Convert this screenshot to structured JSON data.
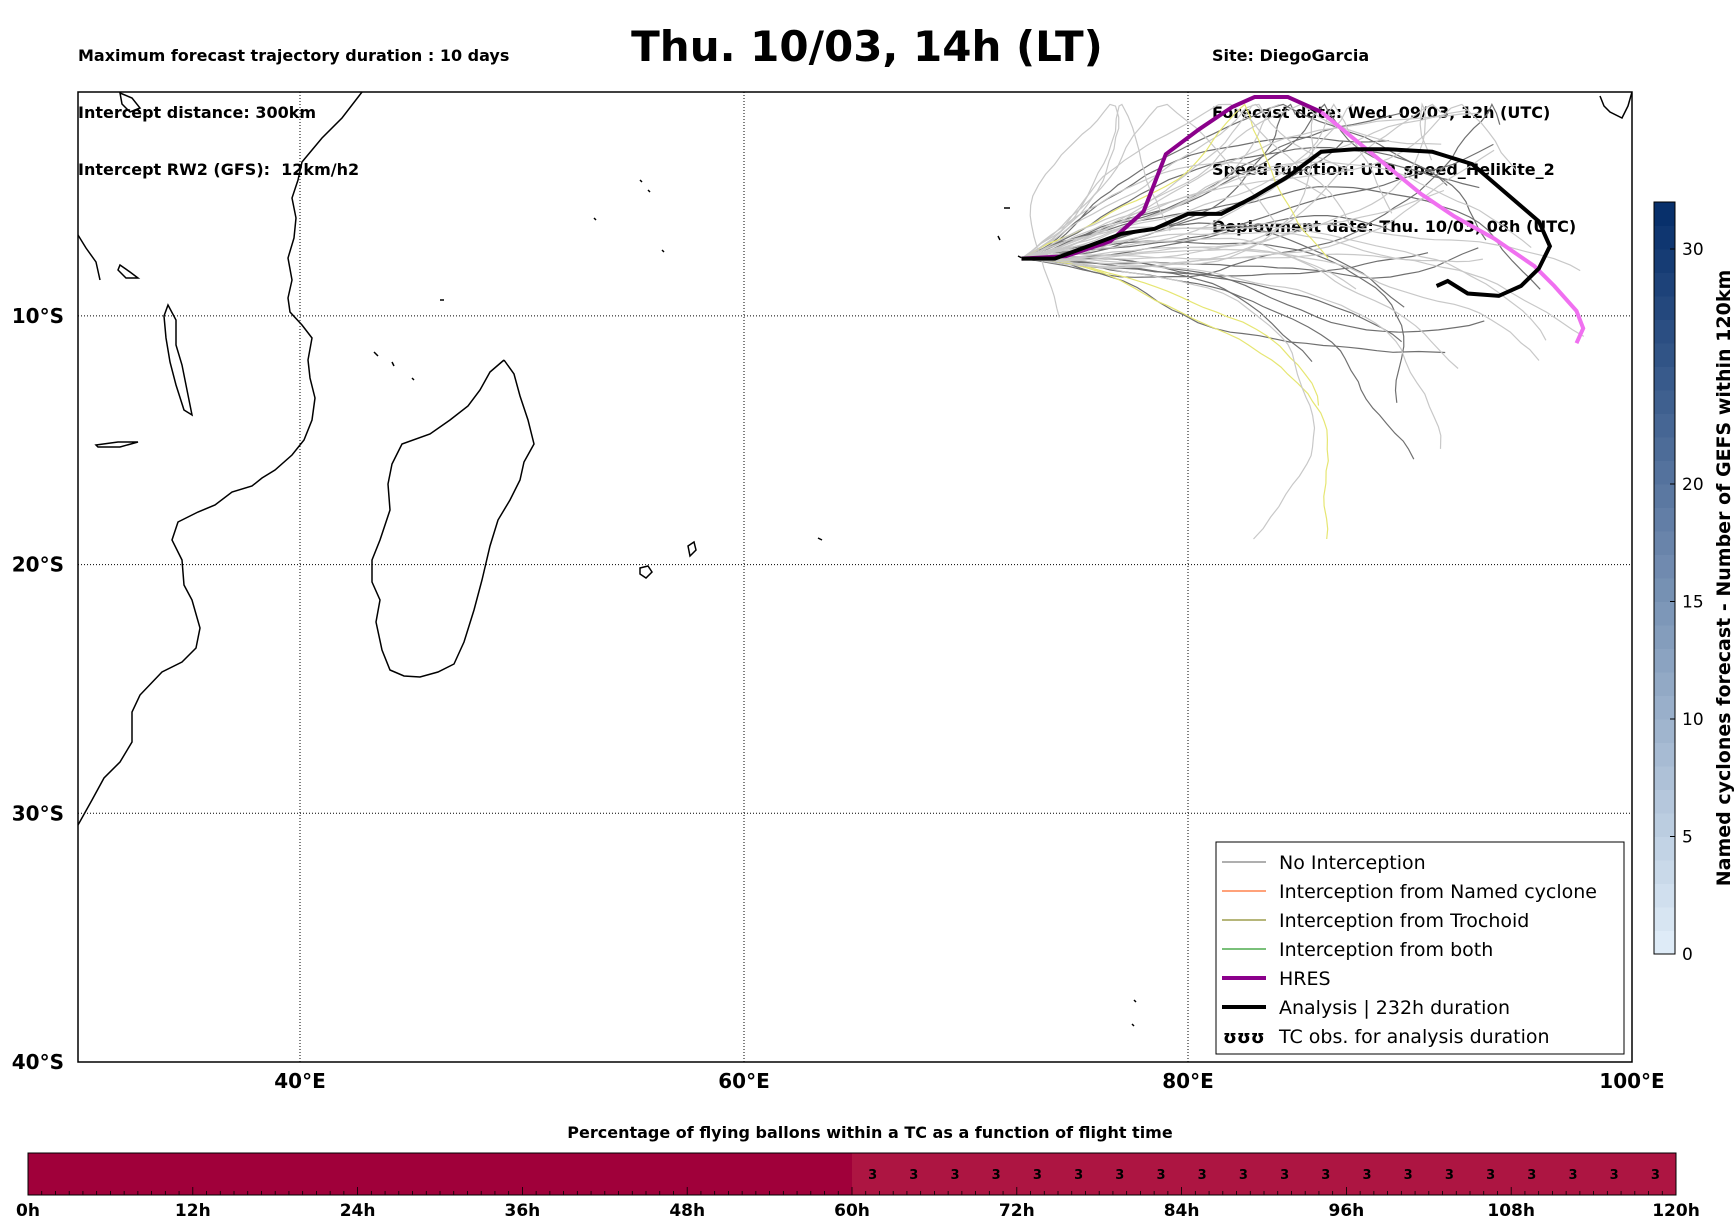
{
  "header": {
    "left_lines": [
      "Maximum forecast trajectory duration : 10 days",
      "Intercept distance: 300km",
      "Intercept RW2 (GFS):  12km/h2"
    ],
    "title": "Thu. 10/03, 14h (LT)",
    "right_lines": [
      "Site: DiegoGarcia",
      "Forecast date: Wed. 09/03, 12h (UTC)",
      "Speed function: U10_speed_Helikite_2",
      "Deployment date: Thu. 10/03, 08h (UTC)"
    ]
  },
  "chart_data": [
    {
      "type": "map",
      "projection": "equirectangular",
      "lon_range": [
        30,
        100
      ],
      "lat_range": [
        -40,
        -1
      ],
      "x_ticks": [
        "40°E",
        "60°E",
        "80°E",
        "100°E"
      ],
      "y_ticks": [
        "10°S",
        "20°S",
        "30°S",
        "40°S"
      ],
      "grid": true,
      "legend_position": "bottom-right",
      "legend": [
        {
          "label": "No Interception",
          "color": "#7f7f7f",
          "style": "thin"
        },
        {
          "label": "Interception from Named cyclone",
          "color": "#ff6a2a",
          "style": "thin"
        },
        {
          "label": "Interception from Trochoid",
          "color": "#8b8b2a",
          "style": "thin"
        },
        {
          "label": "Interception from both",
          "color": "#2a9a2a",
          "style": "thin"
        },
        {
          "label": "HRES",
          "color": "#8b008b",
          "style": "thick"
        },
        {
          "label": "Analysis | 232h duration",
          "color": "#000000",
          "style": "thick"
        },
        {
          "label": "TC obs. for analysis duration",
          "symbol": "ʊʊʊ"
        }
      ],
      "series": [
        {
          "name": "HRES",
          "color": "#8b008b",
          "points": [
            [
              72.5,
              -7.7
            ],
            [
              74.5,
              -7.6
            ],
            [
              76.5,
              -7.0
            ],
            [
              78,
              -5.8
            ],
            [
              79,
              -3.5
            ],
            [
              80.5,
              -2.5
            ],
            [
              82,
              -1.6
            ],
            [
              83,
              -1.2
            ],
            [
              84.5,
              -1.2
            ],
            [
              86,
              -1.8
            ],
            [
              87.5,
              -2.9
            ],
            [
              89,
              -4.0
            ],
            [
              90.5,
              -5.1
            ],
            [
              92,
              -6.0
            ],
            [
              93.8,
              -6.9
            ],
            [
              95.6,
              -8.0
            ],
            [
              96.5,
              -8.8
            ],
            [
              97.5,
              -9.8
            ],
            [
              97.8,
              -10.5
            ],
            [
              97.5,
              -11.1
            ]
          ]
        },
        {
          "name": "Analysis | 232h duration",
          "color": "#000000",
          "points": [
            [
              72.5,
              -7.7
            ],
            [
              74,
              -7.7
            ],
            [
              75.5,
              -7.2
            ],
            [
              77,
              -6.7
            ],
            [
              78.5,
              -6.5
            ],
            [
              80,
              -5.9
            ],
            [
              81.5,
              -5.9
            ],
            [
              83,
              -5.2
            ],
            [
              84.5,
              -4.4
            ],
            [
              86,
              -3.4
            ],
            [
              87.5,
              -3.3
            ],
            [
              89,
              -3.3
            ],
            [
              91,
              -3.4
            ],
            [
              92.8,
              -3.9
            ],
            [
              94.5,
              -5.2
            ],
            [
              95.8,
              -6.2
            ],
            [
              96.3,
              -7.2
            ],
            [
              95.8,
              -8.1
            ],
            [
              95,
              -8.8
            ],
            [
              94,
              -9.2
            ],
            [
              92.6,
              -9.1
            ],
            [
              91.7,
              -8.6
            ],
            [
              91.2,
              -8.8
            ]
          ]
        }
      ],
      "colorbar": {
        "label": "Named cyclones forecast - Number of GEFS within 120km",
        "ticks": [
          0,
          5,
          10,
          15,
          20,
          30
        ],
        "range": [
          0,
          32
        ],
        "colormap": "Blues"
      }
    },
    {
      "type": "bar",
      "title": "Percentage of flying ballons within a TC as a function of flight time",
      "x_ticks": [
        "0h",
        "12h",
        "24h",
        "36h",
        "48h",
        "60h",
        "72h",
        "84h",
        "96h",
        "108h",
        "120h"
      ],
      "x_range": [
        0,
        120
      ],
      "segments": [
        {
          "from_h": 0,
          "to_h": 60,
          "value": null,
          "color": "#a0003a"
        },
        {
          "from_h": 60,
          "to_h": 120,
          "value": 3,
          "color": "#ad1542"
        }
      ],
      "cell_labels": [
        "3",
        "3",
        "3",
        "3",
        "3",
        "3",
        "3",
        "3",
        "3",
        "3",
        "3",
        "3",
        "3",
        "3",
        "3",
        "3",
        "3",
        "3",
        "3",
        "3"
      ]
    }
  ]
}
